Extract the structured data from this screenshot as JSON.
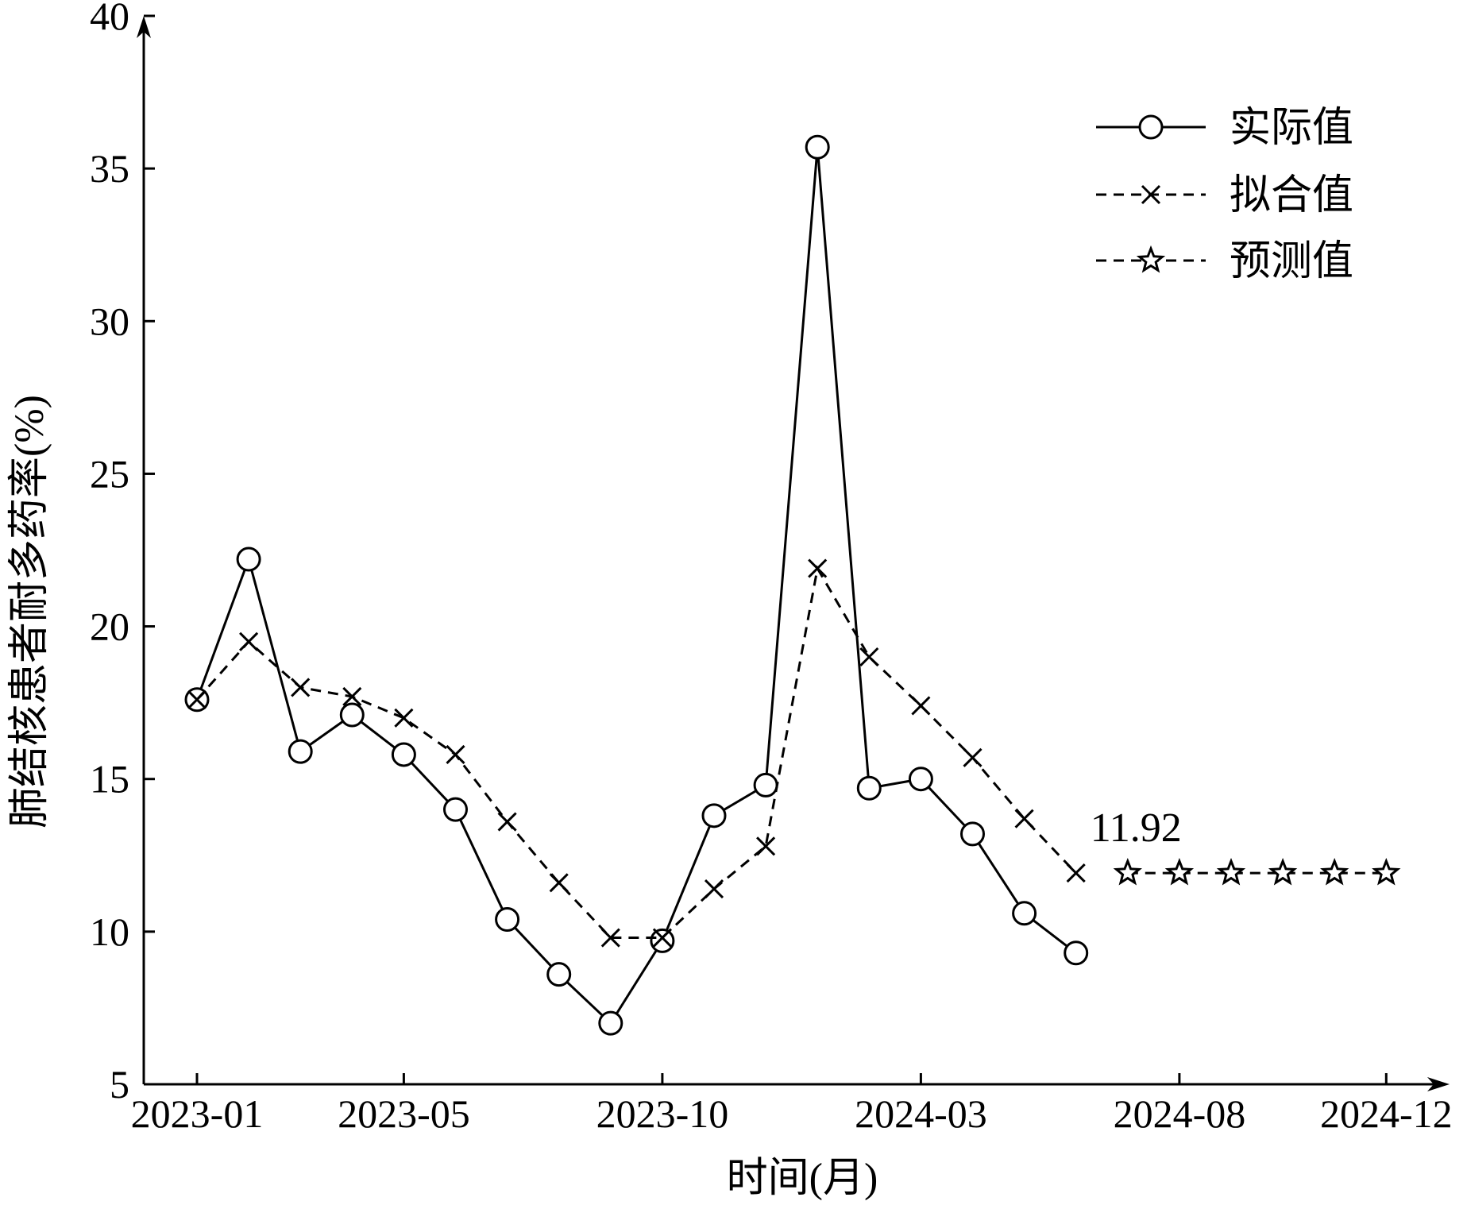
{
  "chart_data": {
    "type": "line",
    "xlabel": "时间(月)",
    "ylabel": "肺结核患者耐多药率(%)",
    "ylim": [
      5,
      40
    ],
    "yticks": [
      5,
      10,
      15,
      20,
      25,
      30,
      35,
      40
    ],
    "xticks": [
      "2023-01",
      "2023-05",
      "2023-10",
      "2024-03",
      "2024-08",
      "2024-12"
    ],
    "xlim_months": [
      "2023-01",
      "2024-12"
    ],
    "legend_position": "top-right",
    "grid": false,
    "series": [
      {
        "name": "实际值",
        "style": "solid-circle",
        "x": [
          "2023-01",
          "2023-02",
          "2023-03",
          "2023-04",
          "2023-05",
          "2023-06",
          "2023-07",
          "2023-08",
          "2023-09",
          "2023-10",
          "2023-11",
          "2023-12",
          "2024-01",
          "2024-02",
          "2024-03",
          "2024-04",
          "2024-05",
          "2024-06"
        ],
        "values": [
          17.6,
          22.2,
          15.9,
          17.1,
          15.8,
          14.0,
          10.4,
          8.6,
          7.0,
          9.7,
          13.8,
          14.8,
          35.7,
          14.7,
          15.0,
          13.2,
          10.6,
          9.3
        ]
      },
      {
        "name": "拟合值",
        "style": "dashed-x",
        "x": [
          "2023-01",
          "2023-02",
          "2023-03",
          "2023-04",
          "2023-05",
          "2023-06",
          "2023-07",
          "2023-08",
          "2023-09",
          "2023-10",
          "2023-11",
          "2023-12",
          "2024-01",
          "2024-02",
          "2024-03",
          "2024-04",
          "2024-05",
          "2024-06"
        ],
        "values": [
          17.6,
          19.5,
          18.0,
          17.7,
          17.0,
          15.8,
          13.6,
          11.6,
          9.8,
          9.8,
          11.4,
          12.8,
          21.9,
          19.0,
          17.4,
          15.7,
          13.7,
          11.92
        ]
      },
      {
        "name": "预测值",
        "style": "dashed-star",
        "x": [
          "2024-07",
          "2024-08",
          "2024-09",
          "2024-10",
          "2024-11",
          "2024-12"
        ],
        "values": [
          11.92,
          11.92,
          11.92,
          11.92,
          11.92,
          11.92
        ]
      }
    ],
    "annotations": [
      {
        "text": "11.92",
        "at_x": "2024-06",
        "at_y": 11.92
      }
    ]
  }
}
